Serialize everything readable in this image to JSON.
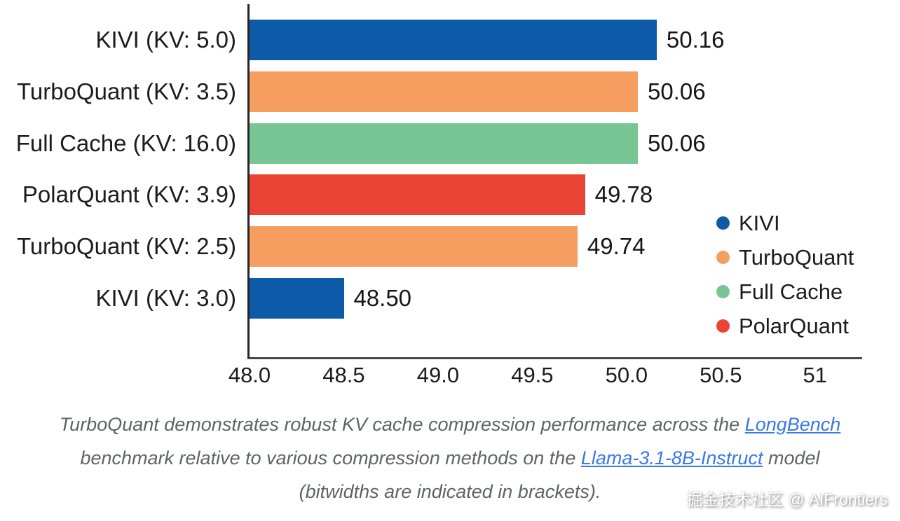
{
  "chart_data": {
    "type": "bar",
    "orientation": "horizontal",
    "categories": [
      "KIVI (KV: 5.0)",
      "TurboQuant (KV: 3.5)",
      "Full Cache (KV: 16.0)",
      "PolarQuant (KV: 3.9)",
      "TurboQuant (KV: 2.5)",
      "KIVI (KV: 3.0)"
    ],
    "values": [
      50.16,
      50.06,
      50.06,
      49.78,
      49.74,
      48.5
    ],
    "value_labels": [
      "50.16",
      "50.06",
      "50.06",
      "49.78",
      "49.74",
      "48.50"
    ],
    "bar_series": [
      "KIVI",
      "TurboQuant",
      "Full Cache",
      "PolarQuant",
      "TurboQuant",
      "KIVI"
    ],
    "bar_colors": [
      "#0d5aa9",
      "#f59e60",
      "#78c694",
      "#ea4335",
      "#f59e60",
      "#0d5aa9"
    ],
    "xlim": [
      48.0,
      51.25
    ],
    "x_ticks": [
      {
        "value": 48.0,
        "label": "48.0"
      },
      {
        "value": 48.5,
        "label": "48.5"
      },
      {
        "value": 49.0,
        "label": "49.0"
      },
      {
        "value": 49.5,
        "label": "49.5"
      },
      {
        "value": 50.0,
        "label": "50.0"
      },
      {
        "value": 50.5,
        "label": "50.5"
      },
      {
        "value": 51.0,
        "label": "51"
      }
    ],
    "grid": false,
    "legend": {
      "position": "right-middle",
      "items": [
        {
          "label": "KIVI",
          "color": "#0d5aa9"
        },
        {
          "label": "TurboQuant",
          "color": "#f59e60"
        },
        {
          "label": "Full Cache",
          "color": "#78c694"
        },
        {
          "label": "PolarQuant",
          "color": "#ea4335"
        }
      ]
    },
    "axis_colors": {
      "y_axis": "#262626",
      "x_axis": "#4b4b4b"
    }
  },
  "caption": {
    "text_color": "#5f6368",
    "link_color": "#3b78e6",
    "lines": [
      {
        "parts": [
          {
            "text": "TurboQuant demonstrates robust KV cache compression performance across the ",
            "link": false
          },
          {
            "text": "LongBench",
            "link": true
          }
        ]
      },
      {
        "parts": [
          {
            "text": "benchmark relative to various compression methods on the ",
            "link": false
          },
          {
            "text": "Llama-3.1-8B-Instruct",
            "link": true
          },
          {
            "text": " model",
            "link": false
          }
        ]
      },
      {
        "parts": [
          {
            "text": "(bitwidths are indicated in brackets).",
            "link": false
          }
        ]
      }
    ]
  },
  "watermark": {
    "text": "掘金技术社区 @ AIFrontiers"
  }
}
